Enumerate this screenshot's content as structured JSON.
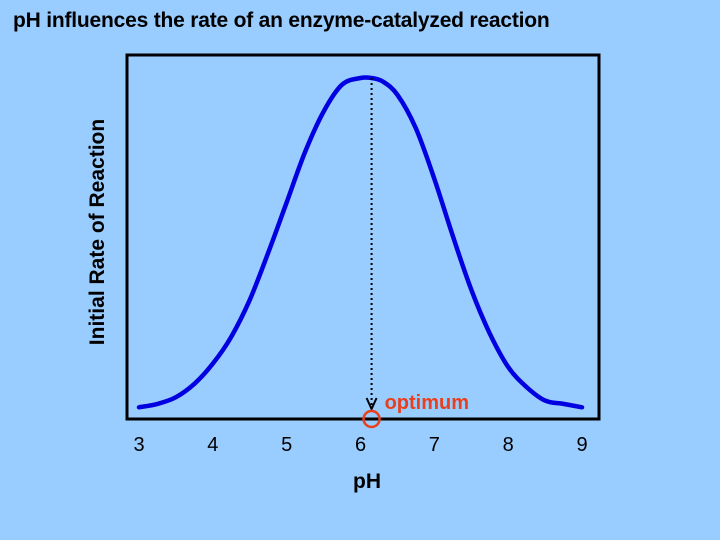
{
  "title": "pH influences the rate of an enzyme-catalyzed reaction",
  "chart_data": {
    "type": "line",
    "xlabel": "pH",
    "ylabel": "Initial Rate of Reaction",
    "xlim": [
      3,
      9
    ],
    "ylim": [
      0,
      1
    ],
    "x_ticks": [
      3,
      4,
      5,
      6,
      7,
      8,
      9
    ],
    "y_ticks": [],
    "grid": false,
    "series": [
      {
        "color": "#0000e0",
        "x": [
          3.0,
          3.25,
          3.5,
          3.75,
          4.0,
          4.25,
          4.5,
          4.75,
          5.0,
          5.25,
          5.5,
          5.75,
          6.0,
          6.15,
          6.3,
          6.5,
          6.75,
          7.0,
          7.25,
          7.5,
          7.75,
          8.0,
          8.25,
          8.5,
          8.75,
          9.0
        ],
        "y": [
          0.02,
          0.03,
          0.05,
          0.09,
          0.15,
          0.23,
          0.34,
          0.48,
          0.63,
          0.78,
          0.9,
          0.98,
          1.0,
          1.0,
          0.99,
          0.95,
          0.85,
          0.7,
          0.53,
          0.37,
          0.24,
          0.14,
          0.08,
          0.04,
          0.03,
          0.02
        ]
      }
    ],
    "annotations": [
      {
        "text": "optimum",
        "x": 6.15,
        "color": "#e8401c",
        "marker": "circle",
        "dotted_line_to_peak": true
      }
    ]
  }
}
